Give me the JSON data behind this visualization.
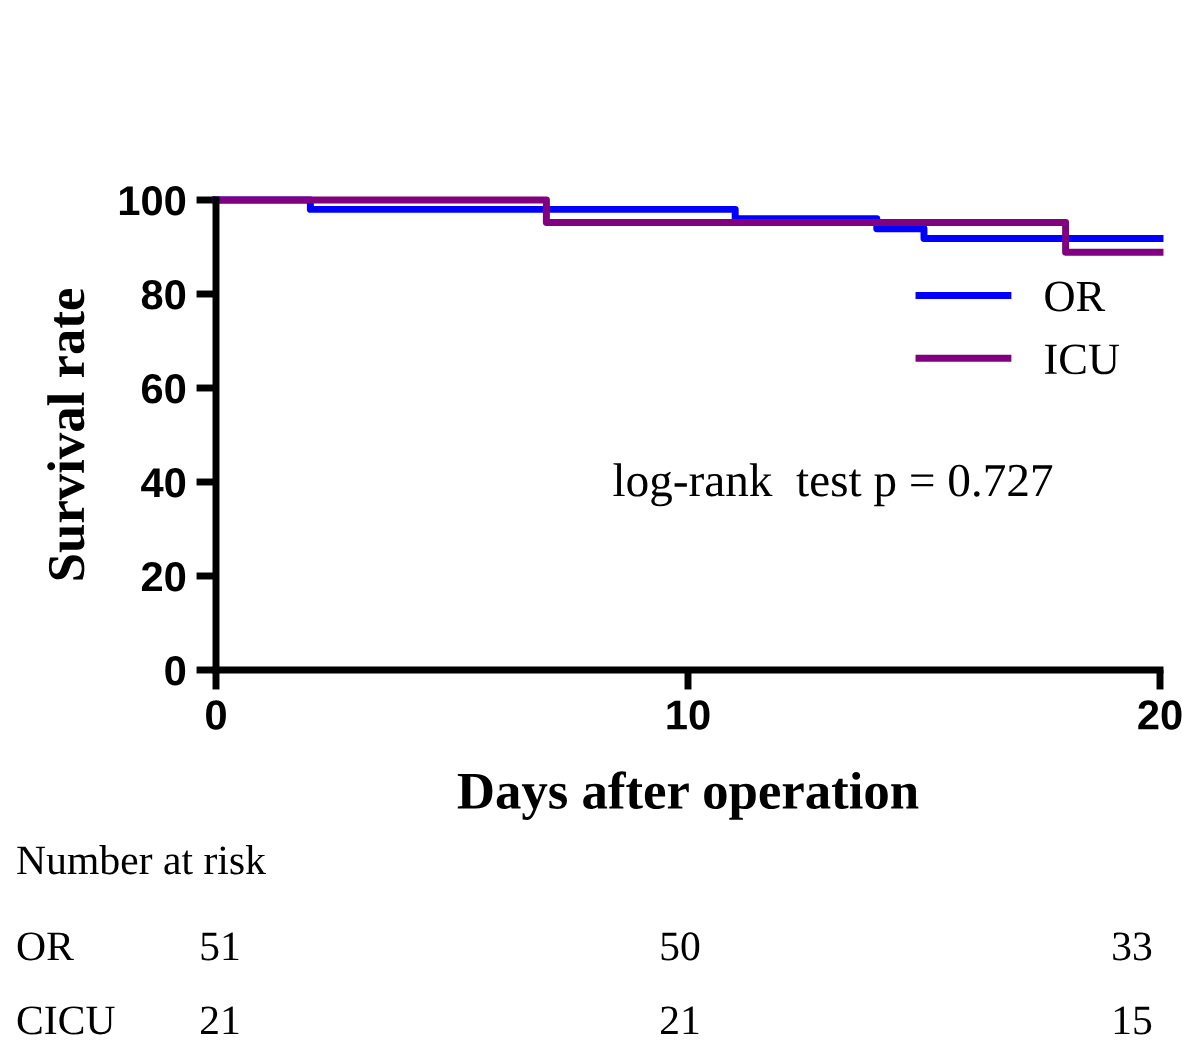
{
  "chart_data": {
    "type": "step",
    "xlabel": "Days after operation",
    "ylabel": "Survival rate",
    "series": [
      {
        "name": "OR",
        "color": "#0000ff",
        "x": [
          0,
          2,
          11,
          14,
          15,
          20
        ],
        "values": [
          100,
          98.0,
          96.0,
          93.9,
          91.8,
          91.8
        ]
      },
      {
        "name": "ICU",
        "color": "#800080",
        "x": [
          0,
          7,
          18,
          20
        ],
        "values": [
          100,
          95.2,
          88.9,
          88.9
        ]
      }
    ],
    "xlim": [
      0,
      20
    ],
    "xticks": [
      0,
      10,
      20
    ],
    "ylim": [
      0,
      100
    ],
    "yticks": [
      0,
      20,
      40,
      60,
      80,
      100
    ],
    "grid": false,
    "legend": "right",
    "line_style": "solid",
    "annotations": [
      "log-rank  test p = 0.727",
      "Number at risk",
      "OR",
      "51",
      "50",
      "33",
      "CICU",
      "21",
      "21",
      "15"
    ]
  }
}
